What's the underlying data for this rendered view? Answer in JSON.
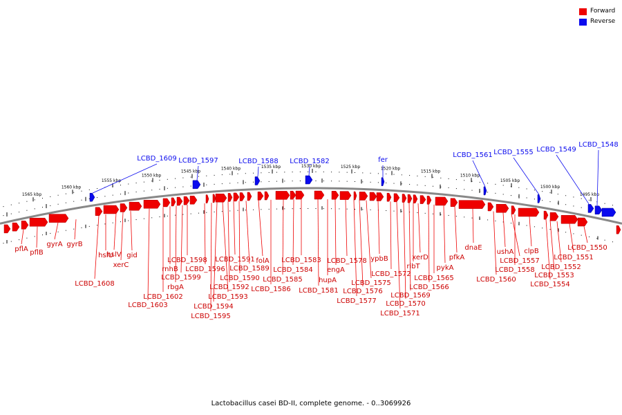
{
  "colors": {
    "forward": "#ee0000",
    "reverse": "#0a0aee",
    "backbone": "#888888",
    "tick": "#000000"
  },
  "legend": {
    "forward": "Forward",
    "reverse": "Reverse"
  },
  "caption": "Lactobacillus casei BD-II, complete genome. - 0..3069926",
  "scale_labels": [
    "1565 kbp",
    "1560 kbp",
    "1555 kbp",
    "1550 kbp",
    "1545 kbp",
    "1540 kbp",
    "1535 kbp",
    "1530 kbp",
    "1525 kbp",
    "1520 kbp",
    "1515 kbp",
    "1510 kbp",
    "1505 kbp",
    "1500 kbp",
    "1495 kbp"
  ],
  "reverse_labels": [
    "LCBD_1609",
    "LCBD_1597",
    "LCBD_1588",
    "LCBD_1582",
    "fer",
    "LCBD_1561",
    "LCBD_1555",
    "LCBD_1549",
    "LCBD_1548"
  ],
  "forward_labels": [
    "pflA",
    "pflB",
    "gyrA",
    "gyrB",
    "LCBD_1608",
    "hslU",
    "hslV",
    "xerC",
    "gid",
    "LCBD_1603",
    "LCBD_1602",
    "rnhB",
    "rbgA",
    "LCBD_1599",
    "LCBD_1598",
    "LCBD_1596",
    "LCBD_1595",
    "LCBD_1594",
    "LCBD_1593",
    "LCBD_1592",
    "LCBD_1591",
    "LCBD_1590",
    "LCBD_1589",
    "folA",
    "LCBD_1586",
    "LCBD_1585",
    "LCBD_1584",
    "LCBD_1583",
    "LCBD_1581",
    "hupA",
    "engA",
    "LCBD_1578",
    "LCBD_1577",
    "LCBD_1576",
    "LCBD_1575",
    "ypbB",
    "LCBD_1572",
    "LCBD_1571",
    "LCBD_1570",
    "LCBD_1569",
    "ribT",
    "xerD",
    "LCBD_1566",
    "LCBD_1565",
    "pykA",
    "pfkA",
    "dnaE",
    "LCBD_1560",
    "ushA",
    "LCBD_1558",
    "LCBD_1557",
    "clpB",
    "LCBD_1554",
    "LCBD_1553",
    "LCBD_1552",
    "LCBD_1551",
    "LCBD_1550"
  ]
}
